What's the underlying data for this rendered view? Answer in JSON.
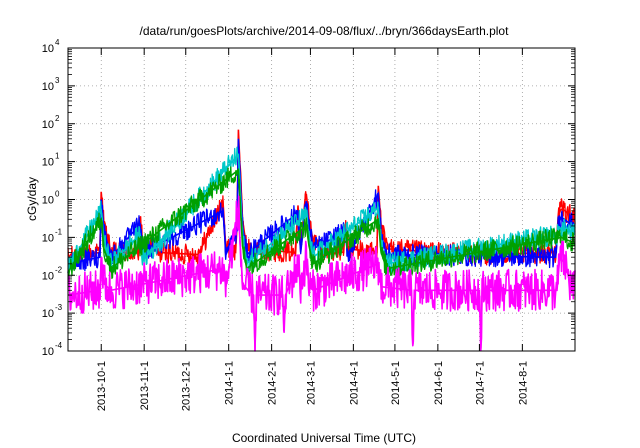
{
  "chart_data": {
    "type": "line",
    "title": "/data/run/goesPlots/archive/2014-09-08/flux/../bryn/366daysEarth.plot",
    "xlabel": "Coordinated Universal Time (UTC)",
    "ylabel": "cGy/day",
    "yscale": "log",
    "ylim": [
      0.0001,
      10000
    ],
    "xlim": [
      "2013-09-07",
      "2014-09-08"
    ],
    "grid": true,
    "y_ticks": [
      {
        "base": "10",
        "exp": "-4"
      },
      {
        "base": "10",
        "exp": "-3"
      },
      {
        "base": "10",
        "exp": "-2"
      },
      {
        "base": "10",
        "exp": "-1"
      },
      {
        "base": "10",
        "exp": "0"
      },
      {
        "base": "10",
        "exp": "1"
      },
      {
        "base": "10",
        "exp": "2"
      },
      {
        "base": "10",
        "exp": "3"
      },
      {
        "base": "10",
        "exp": "4"
      }
    ],
    "x_ticks": [
      {
        "label": "2013-10-1",
        "date": "2013-10-01"
      },
      {
        "label": "2013-11-1",
        "date": "2013-11-01"
      },
      {
        "label": "2013-12-1",
        "date": "2013-12-01"
      },
      {
        "label": "2014-1-1",
        "date": "2014-01-01"
      },
      {
        "label": "2014-2-1",
        "date": "2014-02-01"
      },
      {
        "label": "2014-3-1",
        "date": "2014-03-01"
      },
      {
        "label": "2014-4-1",
        "date": "2014-04-01"
      },
      {
        "label": "2014-5-1",
        "date": "2014-05-01"
      },
      {
        "label": "2014-6-1",
        "date": "2014-06-01"
      },
      {
        "label": "2014-7-1",
        "date": "2014-07-01"
      },
      {
        "label": "2014-8-1",
        "date": "2014-08-01"
      }
    ],
    "series": [
      {
        "color": "#ff0000",
        "baseline": 0.025,
        "points": [
          [
            "2013-09-07",
            0.03
          ],
          [
            "2013-09-30",
            0.04
          ],
          [
            "2013-10-01",
            1.6
          ],
          [
            "2013-10-03",
            0.2
          ],
          [
            "2013-10-08",
            0.04
          ],
          [
            "2013-10-28",
            0.04
          ],
          [
            "2013-10-29",
            0.35
          ],
          [
            "2013-10-31",
            0.06
          ],
          [
            "2013-11-04",
            0.04
          ],
          [
            "2013-11-06",
            0.07
          ],
          [
            "2013-11-10",
            0.04
          ],
          [
            "2013-12-10",
            0.035
          ],
          [
            "2013-12-28",
            0.8
          ],
          [
            "2013-12-30",
            0.05
          ],
          [
            "2014-01-06",
            0.04
          ],
          [
            "2014-01-07",
            0.25
          ],
          [
            "2014-01-08",
            70
          ],
          [
            "2014-01-09",
            10
          ],
          [
            "2014-01-11",
            0.3
          ],
          [
            "2014-01-14",
            0.05
          ],
          [
            "2014-02-18",
            0.04
          ],
          [
            "2014-02-20",
            0.7
          ],
          [
            "2014-02-22",
            0.06
          ],
          [
            "2014-02-25",
            0.9
          ],
          [
            "2014-02-26",
            1.4
          ],
          [
            "2014-02-28",
            0.3
          ],
          [
            "2014-03-03",
            0.08
          ],
          [
            "2014-03-10",
            0.05
          ],
          [
            "2014-03-25",
            0.04
          ],
          [
            "2014-03-26",
            0.22
          ],
          [
            "2014-03-28",
            0.05
          ],
          [
            "2014-04-18",
            0.04
          ],
          [
            "2014-04-19",
            2.3
          ],
          [
            "2014-04-21",
            0.2
          ],
          [
            "2014-04-25",
            0.05
          ],
          [
            "2014-06-01",
            0.04
          ],
          [
            "2014-07-01",
            0.035
          ],
          [
            "2014-08-25",
            0.04
          ],
          [
            "2014-08-27",
            0.4
          ],
          [
            "2014-08-29",
            0.55
          ],
          [
            "2014-09-01",
            0.5
          ],
          [
            "2014-09-03",
            0.4
          ],
          [
            "2014-09-08",
            0.35
          ]
        ]
      },
      {
        "color": "#0000ff",
        "baseline": 0.02,
        "points": [
          [
            "2013-09-07",
            0.02
          ],
          [
            "2013-09-30",
            0.03
          ],
          [
            "2013-10-01",
            1.0
          ],
          [
            "2013-10-03",
            0.15
          ],
          [
            "2013-10-08",
            0.03
          ],
          [
            "2013-10-29",
            0.22
          ],
          [
            "2013-10-31",
            0.04
          ],
          [
            "2013-12-28",
            0.5
          ],
          [
            "2013-12-30",
            0.035
          ],
          [
            "2014-01-07",
            0.15
          ],
          [
            "2014-01-08",
            40
          ],
          [
            "2014-01-09",
            6
          ],
          [
            "2014-01-11",
            0.2
          ],
          [
            "2014-01-14",
            0.035
          ],
          [
            "2014-02-20",
            0.45
          ],
          [
            "2014-02-22",
            0.04
          ],
          [
            "2014-02-26",
            0.9
          ],
          [
            "2014-02-28",
            0.2
          ],
          [
            "2014-03-03",
            0.05
          ],
          [
            "2014-03-26",
            0.14
          ],
          [
            "2014-03-28",
            0.035
          ],
          [
            "2014-04-19",
            1.4
          ],
          [
            "2014-04-21",
            0.12
          ],
          [
            "2014-04-25",
            0.035
          ],
          [
            "2014-08-25",
            0.03
          ],
          [
            "2014-08-27",
            0.25
          ],
          [
            "2014-08-29",
            0.35
          ],
          [
            "2014-09-03",
            0.25
          ],
          [
            "2014-09-08",
            0.22
          ]
        ]
      },
      {
        "color": "#00c8c8",
        "baseline": 0.015,
        "points": [
          [
            "2013-09-07",
            0.015
          ],
          [
            "2013-10-01",
            0.5
          ],
          [
            "2013-10-03",
            0.08
          ],
          [
            "2013-10-08",
            0.02
          ],
          [
            "2013-10-29",
            0.12
          ],
          [
            "2013-10-31",
            0.025
          ],
          [
            "2014-01-08",
            15
          ],
          [
            "2014-01-09",
            3
          ],
          [
            "2014-01-11",
            0.1
          ],
          [
            "2014-01-14",
            0.02
          ],
          [
            "2014-02-26",
            0.4
          ],
          [
            "2014-02-28",
            0.1
          ],
          [
            "2014-03-03",
            0.03
          ],
          [
            "2014-04-19",
            0.6
          ],
          [
            "2014-04-21",
            0.06
          ],
          [
            "2014-04-25",
            0.02
          ],
          [
            "2014-08-27",
            0.12
          ],
          [
            "2014-08-29",
            0.18
          ],
          [
            "2014-09-08",
            0.12
          ]
        ]
      },
      {
        "color": "#00a000",
        "baseline": 0.012,
        "points": [
          [
            "2013-09-07",
            0.012
          ],
          [
            "2013-10-01",
            0.3
          ],
          [
            "2013-10-03",
            0.05
          ],
          [
            "2013-10-08",
            0.015
          ],
          [
            "2014-01-08",
            6
          ],
          [
            "2014-01-09",
            1.2
          ],
          [
            "2014-01-11",
            0.06
          ],
          [
            "2014-01-14",
            0.015
          ],
          [
            "2014-02-26",
            0.2
          ],
          [
            "2014-02-28",
            0.06
          ],
          [
            "2014-03-03",
            0.02
          ],
          [
            "2014-04-19",
            0.3
          ],
          [
            "2014-04-21",
            0.04
          ],
          [
            "2014-04-25",
            0.015
          ],
          [
            "2014-08-29",
            0.1
          ],
          [
            "2014-09-08",
            0.07
          ]
        ]
      },
      {
        "color": "#ff00ff",
        "baseline": 0.0035,
        "points": [
          [
            "2013-09-07",
            0.003
          ],
          [
            "2013-09-30",
            0.004
          ],
          [
            "2013-10-01",
            0.03
          ],
          [
            "2013-10-03",
            0.006
          ],
          [
            "2013-10-08",
            0.004
          ],
          [
            "2013-12-28",
            0.015
          ],
          [
            "2013-12-30",
            0.005
          ],
          [
            "2014-01-08",
            0.6
          ],
          [
            "2014-01-09",
            0.1
          ],
          [
            "2014-01-11",
            0.006
          ],
          [
            "2014-01-15",
            0.004
          ],
          [
            "2014-01-19",
            0.003
          ],
          [
            "2014-01-20",
            0.0001
          ],
          [
            "2014-01-21",
            0.003
          ],
          [
            "2014-02-09",
            0.003
          ],
          [
            "2014-02-10",
            0.0003
          ],
          [
            "2014-02-11",
            0.003
          ],
          [
            "2014-02-20",
            0.02
          ],
          [
            "2014-02-22",
            0.005
          ],
          [
            "2014-02-26",
            0.03
          ],
          [
            "2014-02-28",
            0.005
          ],
          [
            "2014-03-03",
            0.004
          ],
          [
            "2014-04-19",
            0.02
          ],
          [
            "2014-04-21",
            0.005
          ],
          [
            "2014-05-13",
            0.004
          ],
          [
            "2014-05-14",
            0.00015
          ],
          [
            "2014-05-15",
            0.004
          ],
          [
            "2014-07-01",
            0.004
          ],
          [
            "2014-07-02",
            0.0001
          ],
          [
            "2014-07-03",
            0.004
          ],
          [
            "2014-08-26",
            0.004
          ],
          [
            "2014-08-28",
            0.03
          ],
          [
            "2014-09-01",
            0.02
          ],
          [
            "2014-09-05",
            0.005
          ],
          [
            "2014-09-08",
            0.004
          ]
        ]
      }
    ]
  }
}
